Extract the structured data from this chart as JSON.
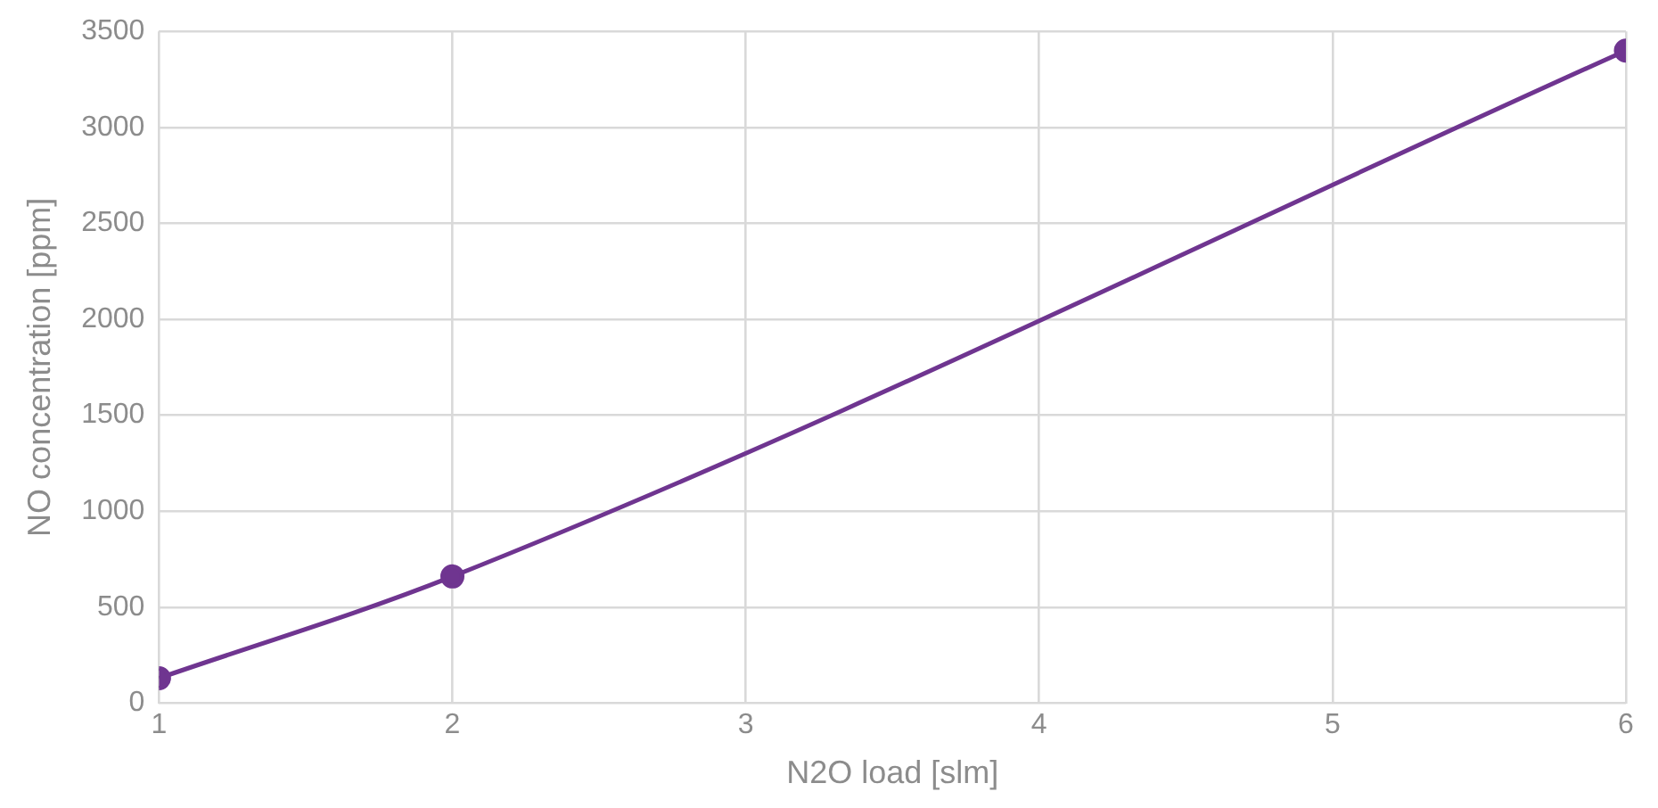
{
  "chart_data": {
    "type": "line",
    "xlabel": "N2O load [slm]",
    "ylabel": "NO concentration [ppm]",
    "x": [
      1,
      2,
      6
    ],
    "series": [
      {
        "color": "#6f3590",
        "values": [
          130,
          660,
          3400
        ]
      }
    ],
    "xlim": [
      1,
      6
    ],
    "xticks": [
      1,
      2,
      3,
      4,
      5,
      6
    ],
    "ylim": [
      0,
      3500
    ],
    "yticks": [
      0,
      500,
      1000,
      1500,
      2000,
      2500,
      3000,
      3500
    ],
    "grid": true,
    "legend": false,
    "marker": "circle",
    "line_style": "solid"
  }
}
